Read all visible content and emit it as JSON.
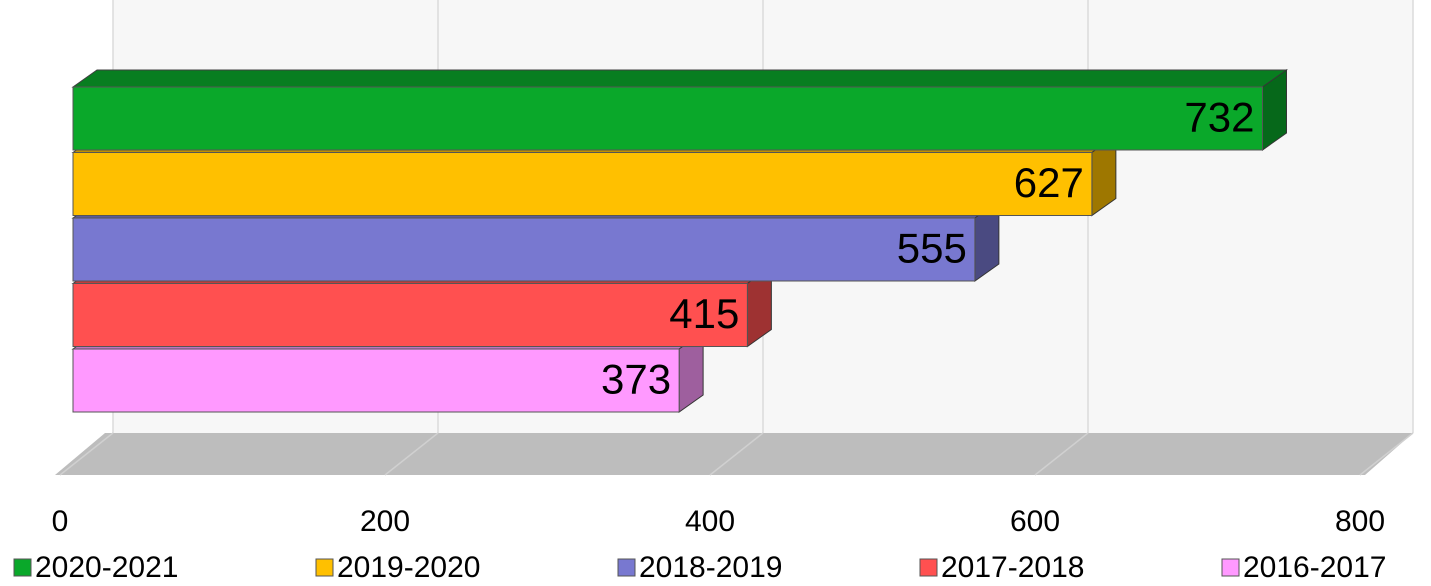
{
  "chart_data": {
    "type": "bar3d",
    "series": [
      {
        "name": "2020-2021",
        "color": "#0aa82a",
        "values": [
          732
        ]
      },
      {
        "name": "2019-2020",
        "color": "#ffc000",
        "values": [
          627
        ]
      },
      {
        "name": "2018-2019",
        "color": "#7878d0",
        "values": [
          555
        ]
      },
      {
        "name": "2017-2018",
        "color": "#ff5050",
        "values": [
          415
        ]
      },
      {
        "name": "2016-2017",
        "color": "#ff99ff",
        "values": [
          373
        ]
      }
    ],
    "xlim": [
      0,
      800
    ],
    "xticks": [
      0,
      200,
      400,
      600,
      800
    ],
    "grid": true
  }
}
